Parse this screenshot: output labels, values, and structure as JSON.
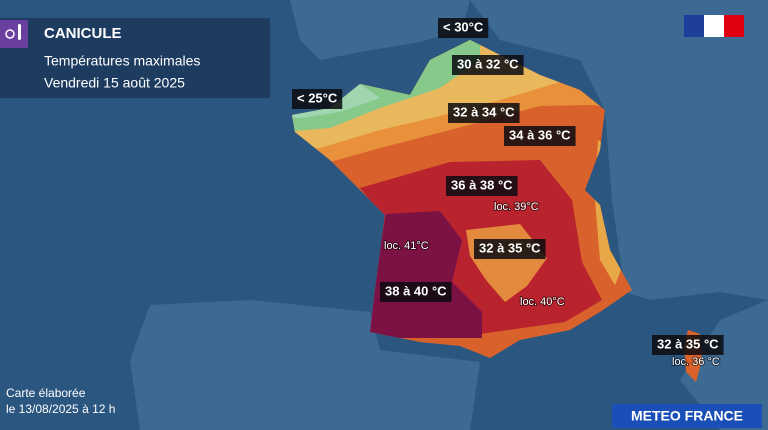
{
  "header": {
    "title": "CANICULE",
    "subtitle": "Températures maximales",
    "date": "Vendredi 15 août 2025"
  },
  "zones": [
    "< 30°C",
    "30 à 32 °C",
    "< 25°C",
    "32 à 34 °C",
    "34 à 36 °C",
    "36 à 38 °C",
    "loc. 39°C",
    "32 à 35 °C",
    "loc. 41°C",
    "38 à 40 °C",
    "loc. 40°C",
    "32 à 35 °C",
    "loc. 36 °C"
  ],
  "footer": {
    "line1": "Carte élaborée",
    "line2": "le 13/08/2025 à 12 h",
    "brand": "METEO FRANCE"
  }
}
